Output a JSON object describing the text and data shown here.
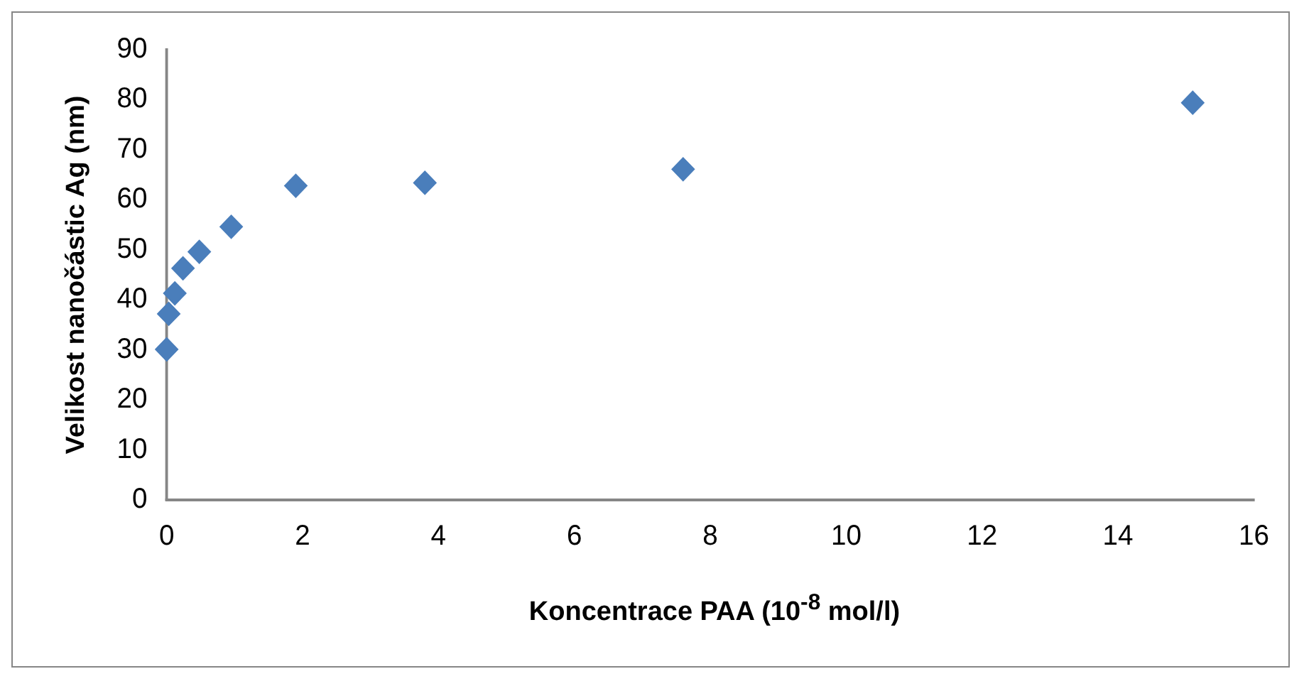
{
  "chart_data": {
    "type": "scatter",
    "xlabel": "Koncentrace PAA (10$^{-8}$  mol/l)",
    "ylabel": "Velikost nanočástic Ag (nm)",
    "x": [
      0,
      0.03,
      0.12,
      0.24,
      0.48,
      0.95,
      1.9,
      3.8,
      7.6,
      15.1
    ],
    "series": [
      {
        "color": "#4a7ebb",
        "values": [
          30.1,
          37.2,
          41.3,
          46.3,
          49.6,
          54.6,
          62.8,
          63.4,
          66.1,
          79.4
        ]
      }
    ],
    "xlim": [
      0,
      16
    ],
    "xticks": [
      0,
      2,
      4,
      6,
      8,
      10,
      12,
      14,
      16
    ],
    "ylim": [
      0,
      90
    ],
    "yticks": [
      0,
      10,
      20,
      30,
      40,
      50,
      60,
      70,
      80,
      90
    ],
    "grid": false,
    "legend": false,
    "marker": "diamond"
  }
}
